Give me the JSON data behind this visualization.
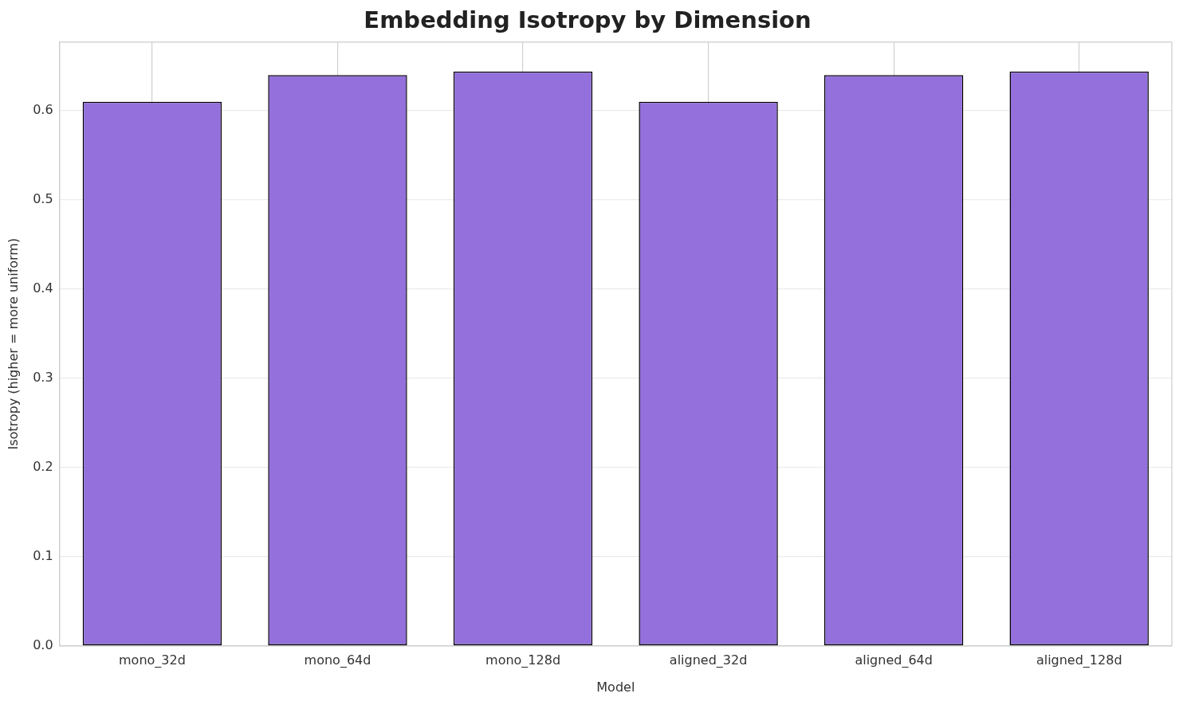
{
  "chart_data": {
    "type": "bar",
    "title": "Embedding Isotropy by Dimension",
    "xlabel": "Model",
    "ylabel": "Isotropy (higher = more uniform)",
    "categories": [
      "mono_32d",
      "mono_64d",
      "mono_128d",
      "aligned_32d",
      "aligned_64d",
      "aligned_128d"
    ],
    "values": [
      0.61,
      0.64,
      0.644,
      0.61,
      0.64,
      0.644
    ],
    "color": "#9370db",
    "ylim": [
      0,
      0.677
    ],
    "yticks": [
      {
        "value": 0,
        "label": "0.0"
      },
      0.1,
      0.2,
      0.3,
      0.4,
      0.5,
      0.6
    ],
    "grid": true,
    "legend": false
  }
}
